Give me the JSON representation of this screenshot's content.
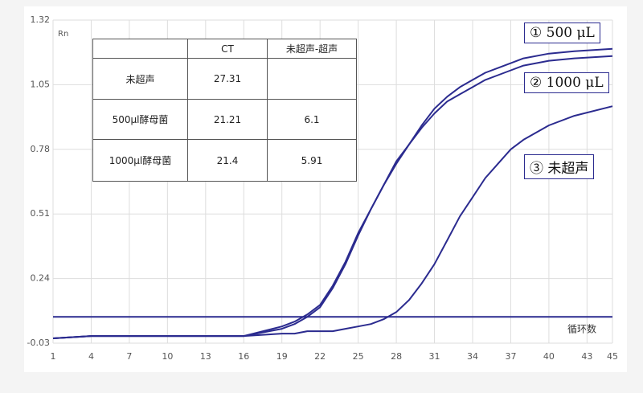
{
  "chart_data": {
    "type": "line",
    "y_label": "Rn",
    "x_label": "循环数",
    "x": [
      1,
      4,
      7,
      10,
      13,
      16,
      19,
      20,
      21,
      22,
      23,
      24,
      25,
      26,
      27,
      28,
      29,
      30,
      31,
      32,
      33,
      34,
      35,
      36,
      37,
      38,
      40,
      42,
      45
    ],
    "xlim": [
      1,
      45
    ],
    "xticks": [
      1,
      4,
      7,
      10,
      13,
      16,
      19,
      22,
      25,
      28,
      31,
      34,
      37,
      40,
      43,
      45
    ],
    "ylim": [
      -0.03,
      1.32
    ],
    "yticks": [
      -0.03,
      0.24,
      0.51,
      0.78,
      1.05,
      1.32
    ],
    "grid": true,
    "threshold": 0.08,
    "threshold_color": "#2b2b8f",
    "series": [
      {
        "name": "① 500 μL",
        "color": "#2b2b8f",
        "values": [
          -0.01,
          0.0,
          0.0,
          0.0,
          0.0,
          0.0,
          0.04,
          0.06,
          0.09,
          0.13,
          0.21,
          0.31,
          0.43,
          0.53,
          0.63,
          0.73,
          0.8,
          0.88,
          0.95,
          1.0,
          1.04,
          1.07,
          1.1,
          1.12,
          1.14,
          1.16,
          1.18,
          1.19,
          1.2
        ]
      },
      {
        "name": "② 1000 μL",
        "color": "#2b2b8f",
        "values": [
          -0.01,
          0.0,
          0.0,
          0.0,
          0.0,
          0.0,
          0.03,
          0.05,
          0.08,
          0.12,
          0.2,
          0.3,
          0.42,
          0.53,
          0.63,
          0.72,
          0.8,
          0.87,
          0.93,
          0.98,
          1.01,
          1.04,
          1.07,
          1.09,
          1.11,
          1.13,
          1.15,
          1.16,
          1.17
        ]
      },
      {
        "name": "③ 未超声",
        "color": "#2b2b8f",
        "values": [
          -0.01,
          0.0,
          0.0,
          0.0,
          0.0,
          0.0,
          0.01,
          0.01,
          0.02,
          0.02,
          0.02,
          0.03,
          0.04,
          0.05,
          0.07,
          0.1,
          0.15,
          0.22,
          0.3,
          0.4,
          0.5,
          0.58,
          0.66,
          0.72,
          0.78,
          0.82,
          0.88,
          0.92,
          0.96
        ]
      }
    ],
    "table": {
      "columns": [
        "CT",
        "未超声-超声"
      ],
      "rows": [
        {
          "label": "未超声",
          "values": [
            27.31,
            null
          ]
        },
        {
          "label": "500μl酵母菌",
          "values": [
            21.21,
            6.1
          ]
        },
        {
          "label": "1000μl酵母菌",
          "values": [
            21.4,
            5.91
          ]
        }
      ]
    }
  }
}
